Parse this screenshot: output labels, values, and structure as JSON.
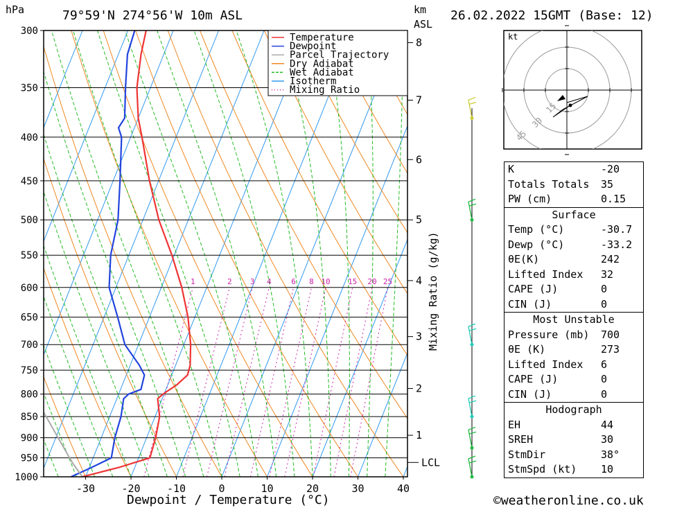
{
  "header": {
    "location": "79°59'N 274°56'W 10m ASL",
    "datetime": "26.02.2022 15GMT (Base: 12)",
    "hpa_unit": "hPa",
    "km_unit": "km",
    "asl_unit": "ASL",
    "copyright": "©weatheronline.co.uk"
  },
  "chart_data": {
    "type": "line",
    "subtype": "skew-T log-p diagram",
    "xlabel": "Dewpoint / Temperature (°C)",
    "ylabel_right": "Mixing Ratio (g/kg)",
    "xlim": [
      -40,
      40
    ],
    "ylim_hpa": [
      1000,
      300
    ],
    "x_ticks": [
      -30,
      -20,
      -10,
      0,
      10,
      20,
      30,
      40
    ],
    "pressure_ticks": [
      300,
      350,
      400,
      450,
      500,
      550,
      600,
      650,
      700,
      750,
      800,
      850,
      900,
      950,
      1000
    ],
    "km_ticks": [
      {
        "label": "1",
        "p": 894
      },
      {
        "label": "2",
        "p": 788
      },
      {
        "label": "3",
        "p": 685
      },
      {
        "label": "4",
        "p": 589
      },
      {
        "label": "5",
        "p": 500
      },
      {
        "label": "6",
        "p": 425
      },
      {
        "label": "7",
        "p": 362
      },
      {
        "label": "8",
        "p": 310
      }
    ],
    "lcl": {
      "label": "LCL",
      "p": 962
    },
    "mixing_ratio_labels": [
      "1",
      "2",
      "3",
      "4",
      "6",
      "8",
      "10",
      "15",
      "20",
      "25"
    ],
    "legend": {
      "placement": "top-right",
      "entries": [
        {
          "name": "Temperature",
          "color": "#ee3333",
          "style": "solid"
        },
        {
          "name": "Dewpoint",
          "color": "#2244dd",
          "style": "solid"
        },
        {
          "name": "Parcel Trajectory",
          "color": "#aaaaaa",
          "style": "solid"
        },
        {
          "name": "Dry Adiabat",
          "color": "#ee8822",
          "style": "solid"
        },
        {
          "name": "Wet Adiabat",
          "color": "#22bb22",
          "style": "dashed"
        },
        {
          "name": "Isotherm",
          "color": "#3399ee",
          "style": "solid"
        },
        {
          "name": "Mixing Ratio",
          "color": "#cc22aa",
          "style": "dotted"
        }
      ]
    },
    "series": [
      {
        "name": "Temperature",
        "color": "#ee3333",
        "points": [
          [
            1000,
            -30.7
          ],
          [
            975,
            -23.5
          ],
          [
            950,
            -17.5
          ],
          [
            900,
            -18.0
          ],
          [
            850,
            -19.0
          ],
          [
            810,
            -21.0
          ],
          [
            800,
            -20.2
          ],
          [
            780,
            -18.0
          ],
          [
            760,
            -16.5
          ],
          [
            740,
            -16.8
          ],
          [
            700,
            -18.5
          ],
          [
            650,
            -21.5
          ],
          [
            600,
            -25.5
          ],
          [
            550,
            -30.5
          ],
          [
            500,
            -36.5
          ],
          [
            450,
            -42.0
          ],
          [
            400,
            -47.5
          ],
          [
            380,
            -50.0
          ],
          [
            350,
            -53.0
          ],
          [
            320,
            -55.0
          ],
          [
            300,
            -56.0
          ]
        ]
      },
      {
        "name": "Dewpoint",
        "color": "#2244dd",
        "points": [
          [
            1000,
            -33.2
          ],
          [
            975,
            -29.5
          ],
          [
            950,
            -26.0
          ],
          [
            900,
            -27.0
          ],
          [
            850,
            -27.5
          ],
          [
            810,
            -28.5
          ],
          [
            800,
            -27.8
          ],
          [
            790,
            -25.5
          ],
          [
            760,
            -26.0
          ],
          [
            740,
            -28.0
          ],
          [
            700,
            -33.0
          ],
          [
            650,
            -37.0
          ],
          [
            600,
            -41.5
          ],
          [
            550,
            -44.0
          ],
          [
            500,
            -45.5
          ],
          [
            450,
            -48.5
          ],
          [
            400,
            -52.0
          ],
          [
            390,
            -53.5
          ],
          [
            380,
            -53.0
          ],
          [
            350,
            -55.5
          ],
          [
            320,
            -58.0
          ],
          [
            300,
            -58.5
          ]
        ]
      },
      {
        "name": "Parcel Trajectory",
        "color": "#aaaaaa",
        "points": [
          [
            1000,
            -30.7
          ],
          [
            975,
            -33.0
          ],
          [
            962,
            -34.2
          ],
          [
            950,
            -35.2
          ],
          [
            900,
            -39.5
          ],
          [
            850,
            -44.0
          ],
          [
            800,
            -49.0
          ],
          [
            780,
            -51.0
          ]
        ]
      }
    ]
  },
  "hodograph": {
    "unit_label": "kt",
    "ring_labels": [
      "15",
      "30",
      "45"
    ]
  },
  "wind_barbs": [
    {
      "p": 380,
      "color": "#cccc33"
    },
    {
      "p": 500,
      "color": "#22bb44"
    },
    {
      "p": 700,
      "color": "#22ccbb"
    },
    {
      "p": 850,
      "color": "#22ccbb"
    },
    {
      "p": 925,
      "color": "#22bb44"
    },
    {
      "p": 1000,
      "color": "#22bb44"
    }
  ],
  "indices": {
    "rows": [
      {
        "label": "K",
        "value": "-20"
      },
      {
        "label": "Totals Totals",
        "value": "35"
      },
      {
        "label": "PW (cm)",
        "value": "0.15"
      }
    ],
    "surface": {
      "title": "Surface",
      "rows": [
        {
          "label": "Temp (°C)",
          "value": "-30.7"
        },
        {
          "label": "Dewp (°C)",
          "value": "-33.2"
        },
        {
          "label": "θE(K)",
          "value": "242"
        },
        {
          "label": "Lifted Index",
          "value": "32"
        },
        {
          "label": "CAPE (J)",
          "value": "0"
        },
        {
          "label": "CIN (J)",
          "value": "0"
        }
      ]
    },
    "most_unstable": {
      "title": "Most Unstable",
      "rows": [
        {
          "label": "Pressure (mb)",
          "value": "700"
        },
        {
          "label": "θE (K)",
          "value": "273"
        },
        {
          "label": "Lifted Index",
          "value": "6"
        },
        {
          "label": "CAPE (J)",
          "value": "0"
        },
        {
          "label": "CIN (J)",
          "value": "0"
        }
      ]
    },
    "hodograph_stats": {
      "title": "Hodograph",
      "rows": [
        {
          "label": "EH",
          "value": "44"
        },
        {
          "label": "SREH",
          "value": "30"
        },
        {
          "label": "StmDir",
          "value": "38°"
        },
        {
          "label": "StmSpd (kt)",
          "value": "10"
        }
      ]
    }
  }
}
